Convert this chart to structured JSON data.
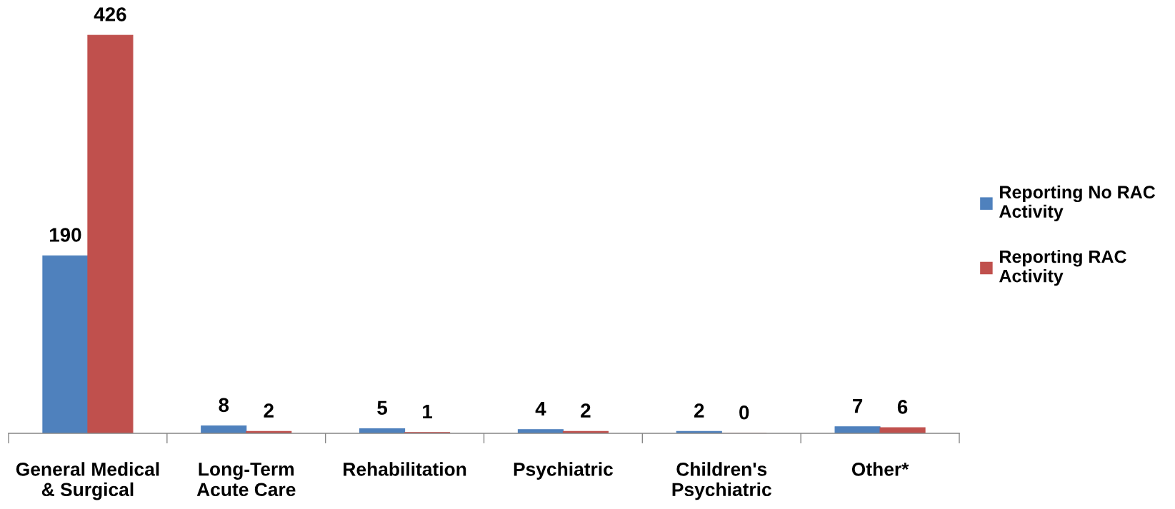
{
  "chart_data": {
    "type": "bar",
    "categories": [
      "General Medical\n& Surgical",
      "Long-Term\nAcute Care",
      "Rehabilitation",
      "Psychiatric",
      "Children's\nPsychiatric",
      "Other*"
    ],
    "series": [
      {
        "name": "Reporting No RAC\nActivity",
        "color": "#4f81bd",
        "values": [
          190,
          8,
          5,
          4,
          2,
          7
        ]
      },
      {
        "name": "Reporting RAC\nActivity",
        "color": "#c0504d",
        "values": [
          426,
          2,
          1,
          2,
          0,
          6
        ]
      }
    ],
    "data_labels": true,
    "legend": "right",
    "tick_labels": "x"
  }
}
